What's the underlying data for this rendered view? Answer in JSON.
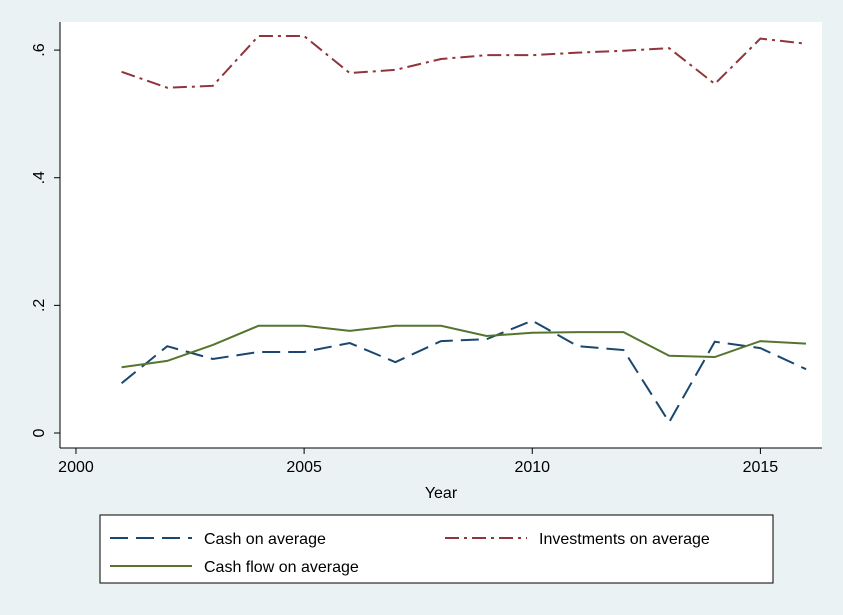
{
  "chart_data": {
    "type": "line",
    "x": [
      2001,
      2002,
      2003,
      2004,
      2005,
      2006,
      2007,
      2008,
      2009,
      2010,
      2011,
      2012,
      2013,
      2014,
      2015,
      2016
    ],
    "x_label": "Year",
    "series": [
      {
        "name": "Cash on average",
        "color": "#1a476f",
        "linestyle": "dash",
        "values": [
          0.078,
          0.136,
          0.116,
          0.127,
          0.127,
          0.141,
          0.111,
          0.144,
          0.147,
          0.176,
          0.136,
          0.13,
          0.017,
          0.143,
          0.133,
          0.1
        ]
      },
      {
        "name": "Investments on average",
        "color": "#90353b",
        "linestyle": "dash-dot",
        "values": [
          0.566,
          0.541,
          0.544,
          0.622,
          0.622,
          0.564,
          0.569,
          0.586,
          0.592,
          0.592,
          0.596,
          0.599,
          0.603,
          0.547,
          0.618,
          0.61
        ]
      },
      {
        "name": "Cash flow on average",
        "color": "#55752f",
        "linestyle": "solid",
        "values": [
          0.103,
          0.113,
          0.138,
          0.168,
          0.168,
          0.16,
          0.168,
          0.168,
          0.152,
          0.157,
          0.158,
          0.158,
          0.121,
          0.119,
          0.144,
          0.14
        ]
      }
    ],
    "xlim": [
      1999.65,
      2016.35
    ],
    "xticks": [
      2000,
      2005,
      2010,
      2015
    ],
    "ylim": [
      -0.0235,
      0.644
    ],
    "yticks": [
      {
        "value": 0,
        "label": "0"
      },
      {
        "value": 0.2,
        "label": ".2"
      },
      {
        "value": 0.4,
        "label": ".4"
      },
      {
        "value": 0.6,
        "label": ".6"
      }
    ],
    "grid": false
  }
}
